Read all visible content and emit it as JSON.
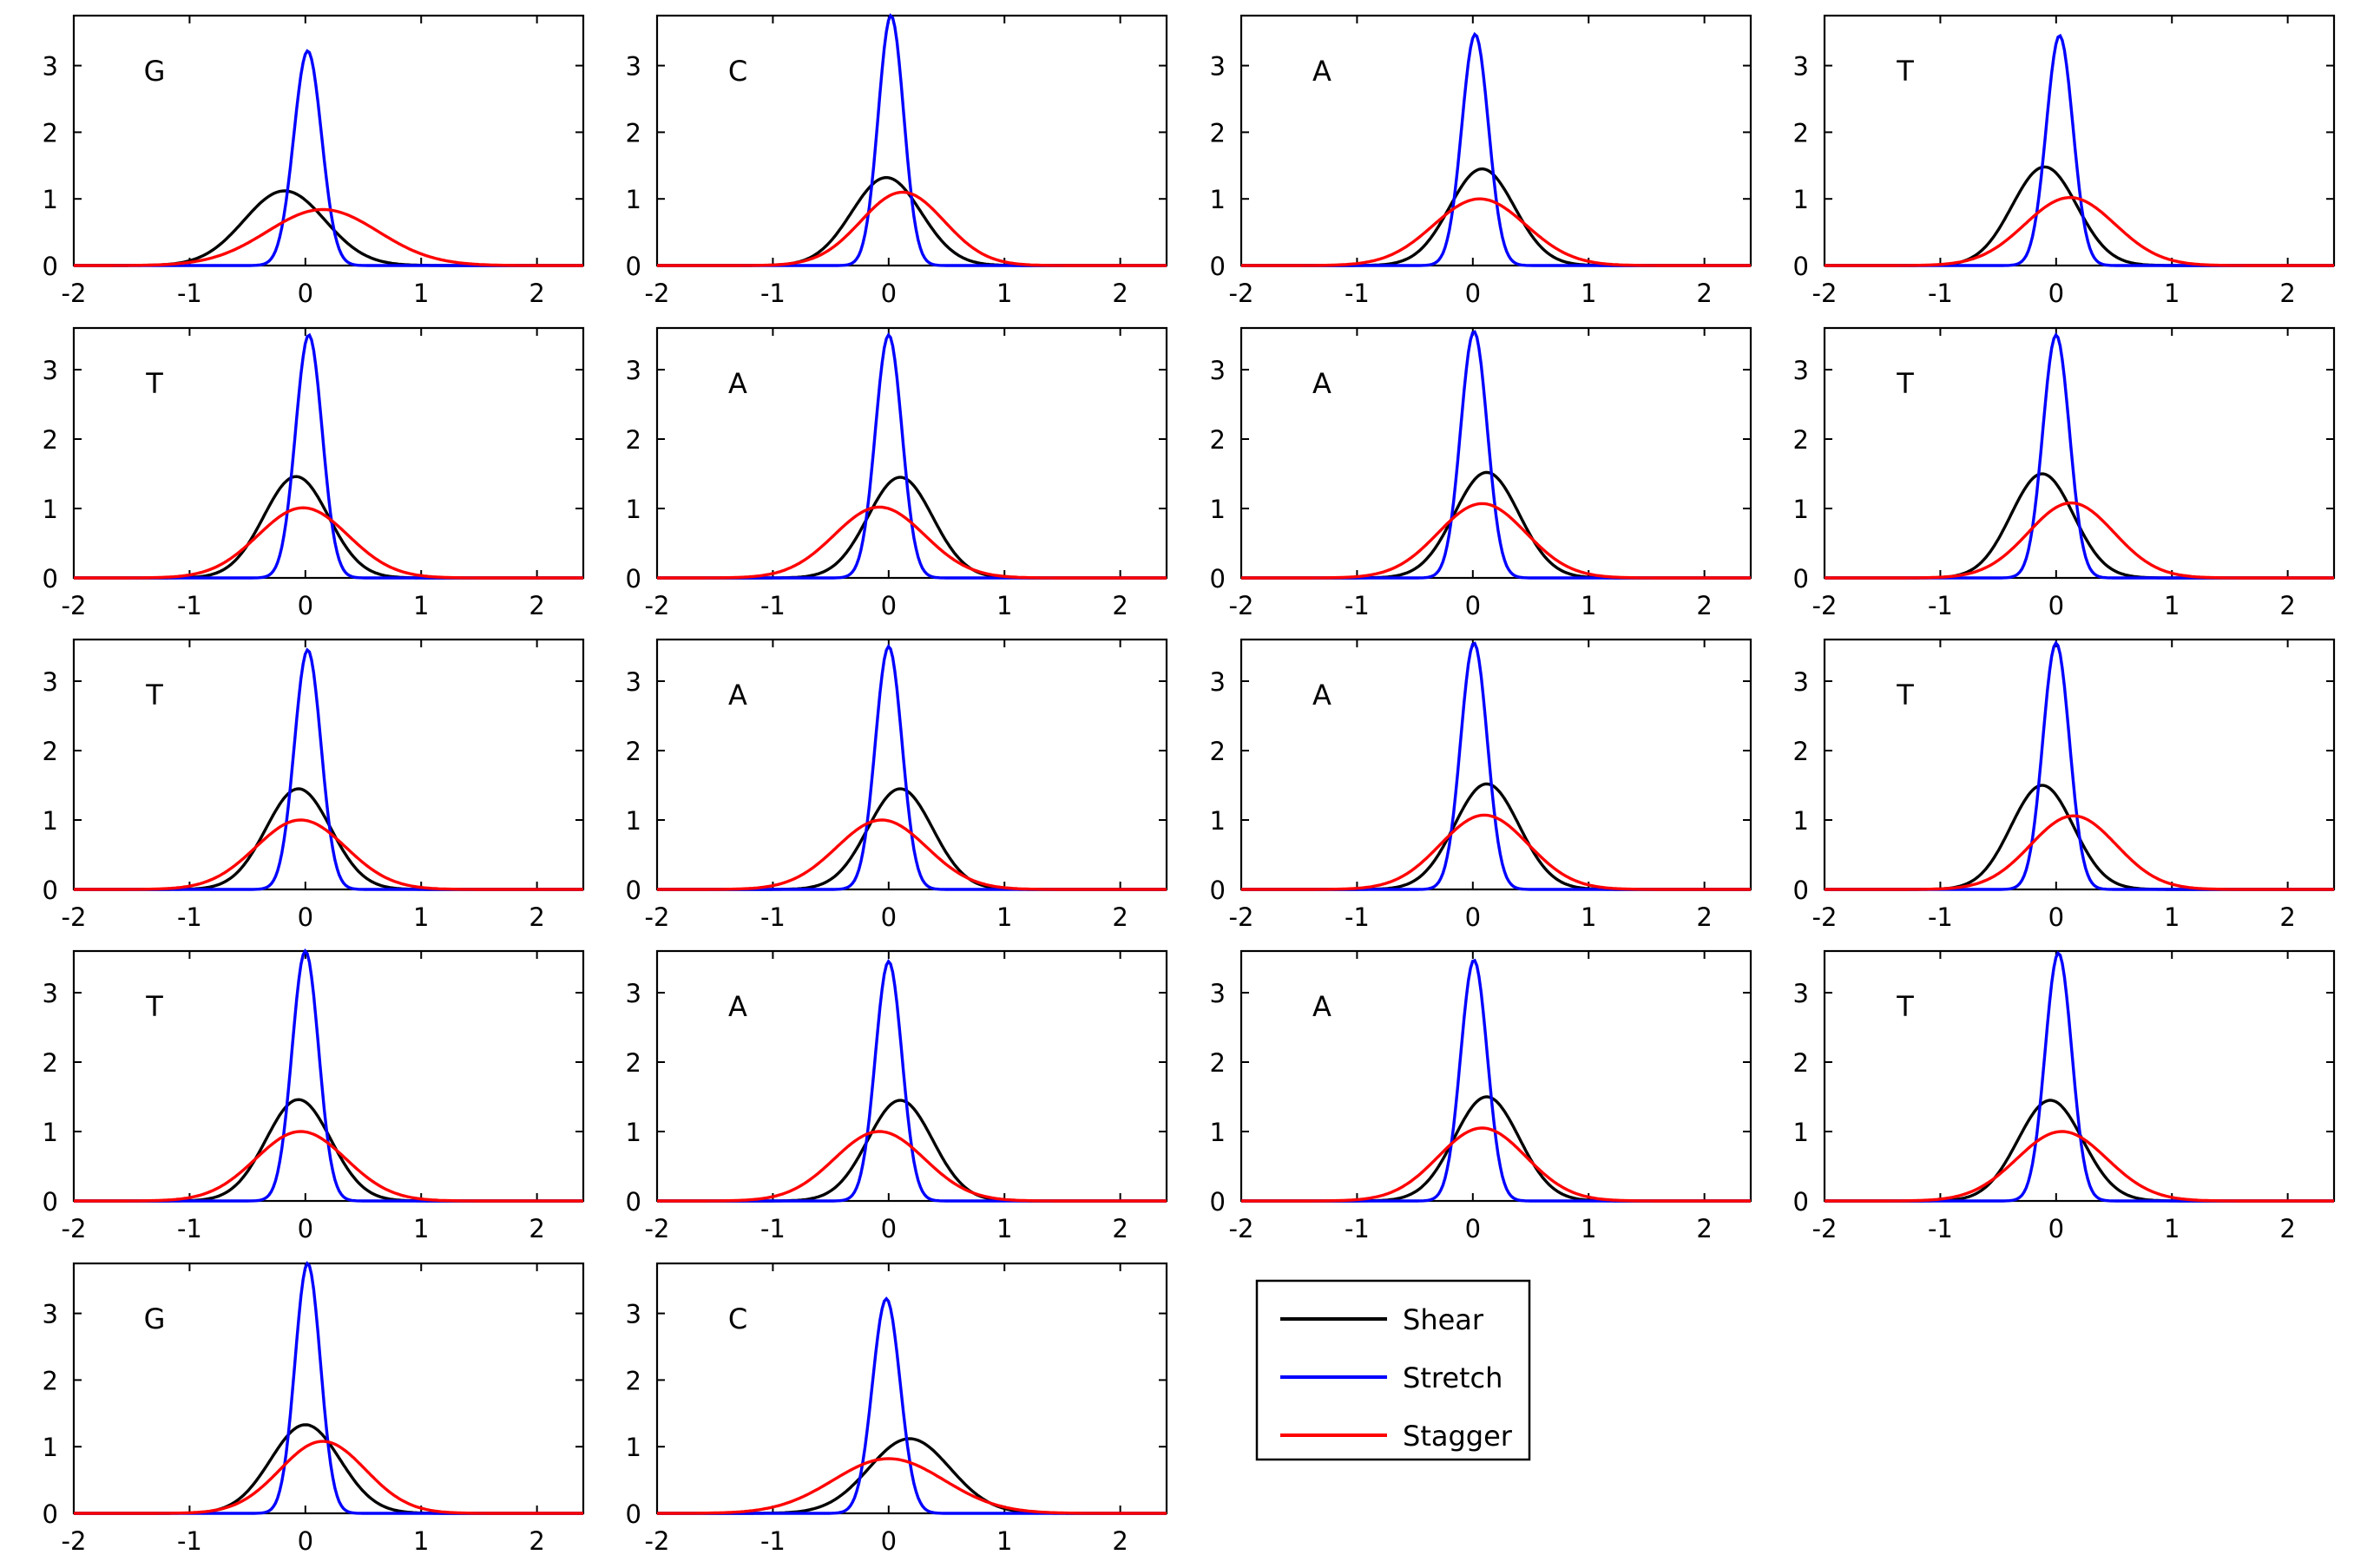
{
  "figure": {
    "layout": {
      "rows": 5,
      "cols": 4
    },
    "legend": {
      "placement": "row-5-col-3",
      "entries": [
        {
          "name": "Shear",
          "color": "#000000"
        },
        {
          "name": "Stretch",
          "color": "#0000ff"
        },
        {
          "name": "Stagger",
          "color": "#ff0000"
        }
      ]
    }
  },
  "chart_data": [
    {
      "type": "line",
      "label": "G",
      "xlim": [
        -2,
        2.4
      ],
      "ylim": [
        0,
        3.75
      ],
      "xticks": [
        -2,
        -1,
        0,
        1,
        2
      ],
      "yticks": [
        0,
        1,
        2,
        3
      ],
      "grid": false,
      "series": [
        {
          "name": "Shear",
          "color": "#000000",
          "mu": -0.18,
          "sigma": 0.35,
          "peak": 1.12
        },
        {
          "name": "Stretch",
          "color": "#0000ff",
          "mu": 0.02,
          "sigma": 0.12,
          "peak": 3.22
        },
        {
          "name": "Stagger",
          "color": "#ff0000",
          "mu": 0.15,
          "sigma": 0.48,
          "peak": 0.84
        }
      ]
    },
    {
      "type": "line",
      "label": "C",
      "xlim": [
        -2,
        2.4
      ],
      "ylim": [
        0,
        3.75
      ],
      "xticks": [
        -2,
        -1,
        0,
        1,
        2
      ],
      "yticks": [
        0,
        1,
        2,
        3
      ],
      "grid": false,
      "series": [
        {
          "name": "Shear",
          "color": "#000000",
          "mu": -0.02,
          "sigma": 0.3,
          "peak": 1.32
        },
        {
          "name": "Stretch",
          "color": "#0000ff",
          "mu": 0.02,
          "sigma": 0.11,
          "peak": 3.75
        },
        {
          "name": "Stagger",
          "color": "#ff0000",
          "mu": 0.12,
          "sigma": 0.36,
          "peak": 1.1
        }
      ]
    },
    {
      "type": "line",
      "label": "A",
      "xlim": [
        -2,
        2.4
      ],
      "ylim": [
        0,
        3.75
      ],
      "xticks": [
        -2,
        -1,
        0,
        1,
        2
      ],
      "yticks": [
        0,
        1,
        2,
        3
      ],
      "grid": false,
      "series": [
        {
          "name": "Shear",
          "color": "#000000",
          "mu": 0.08,
          "sigma": 0.28,
          "peak": 1.45
        },
        {
          "name": "Stretch",
          "color": "#0000ff",
          "mu": 0.02,
          "sigma": 0.115,
          "peak": 3.47
        },
        {
          "name": "Stagger",
          "color": "#ff0000",
          "mu": 0.06,
          "sigma": 0.4,
          "peak": 1.0
        }
      ]
    },
    {
      "type": "line",
      "label": "T",
      "xlim": [
        -2,
        2.4
      ],
      "ylim": [
        0,
        3.75
      ],
      "xticks": [
        -2,
        -1,
        0,
        1,
        2
      ],
      "yticks": [
        0,
        1,
        2,
        3
      ],
      "grid": false,
      "series": [
        {
          "name": "Shear",
          "color": "#000000",
          "mu": -0.1,
          "sigma": 0.28,
          "peak": 1.48
        },
        {
          "name": "Stretch",
          "color": "#0000ff",
          "mu": 0.03,
          "sigma": 0.115,
          "peak": 3.45
        },
        {
          "name": "Stagger",
          "color": "#ff0000",
          "mu": 0.12,
          "sigma": 0.39,
          "peak": 1.02
        }
      ]
    },
    {
      "type": "line",
      "label": "T",
      "xlim": [
        -2,
        2.4
      ],
      "ylim": [
        0,
        3.6
      ],
      "xticks": [
        -2,
        -1,
        0,
        1,
        2
      ],
      "yticks": [
        0,
        1,
        2,
        3
      ],
      "grid": false,
      "series": [
        {
          "name": "Shear",
          "color": "#000000",
          "mu": -0.08,
          "sigma": 0.28,
          "peak": 1.46
        },
        {
          "name": "Stretch",
          "color": "#0000ff",
          "mu": 0.03,
          "sigma": 0.115,
          "peak": 3.5
        },
        {
          "name": "Stagger",
          "color": "#ff0000",
          "mu": -0.02,
          "sigma": 0.39,
          "peak": 1.01
        }
      ]
    },
    {
      "type": "line",
      "label": "A",
      "xlim": [
        -2,
        2.4
      ],
      "ylim": [
        0,
        3.6
      ],
      "xticks": [
        -2,
        -1,
        0,
        1,
        2
      ],
      "yticks": [
        0,
        1,
        2,
        3
      ],
      "grid": false,
      "series": [
        {
          "name": "Shear",
          "color": "#000000",
          "mu": 0.1,
          "sigma": 0.28,
          "peak": 1.45
        },
        {
          "name": "Stretch",
          "color": "#0000ff",
          "mu": 0.0,
          "sigma": 0.115,
          "peak": 3.5
        },
        {
          "name": "Stagger",
          "color": "#ff0000",
          "mu": -0.08,
          "sigma": 0.39,
          "peak": 1.02
        }
      ]
    },
    {
      "type": "line",
      "label": "A",
      "xlim": [
        -2,
        2.4
      ],
      "ylim": [
        0,
        3.6
      ],
      "xticks": [
        -2,
        -1,
        0,
        1,
        2
      ],
      "yticks": [
        0,
        1,
        2,
        3
      ],
      "grid": false,
      "series": [
        {
          "name": "Shear",
          "color": "#000000",
          "mu": 0.12,
          "sigma": 0.28,
          "peak": 1.52
        },
        {
          "name": "Stretch",
          "color": "#0000ff",
          "mu": 0.01,
          "sigma": 0.115,
          "peak": 3.55
        },
        {
          "name": "Stagger",
          "color": "#ff0000",
          "mu": 0.08,
          "sigma": 0.38,
          "peak": 1.07
        }
      ]
    },
    {
      "type": "line",
      "label": "T",
      "xlim": [
        -2,
        2.4
      ],
      "ylim": [
        0,
        3.6
      ],
      "xticks": [
        -2,
        -1,
        0,
        1,
        2
      ],
      "yticks": [
        0,
        1,
        2,
        3
      ],
      "grid": false,
      "series": [
        {
          "name": "Shear",
          "color": "#000000",
          "mu": -0.12,
          "sigma": 0.27,
          "peak": 1.5
        },
        {
          "name": "Stretch",
          "color": "#0000ff",
          "mu": 0.0,
          "sigma": 0.115,
          "peak": 3.5
        },
        {
          "name": "Stagger",
          "color": "#ff0000",
          "mu": 0.13,
          "sigma": 0.37,
          "peak": 1.08
        }
      ]
    },
    {
      "type": "line",
      "label": "T",
      "xlim": [
        -2,
        2.4
      ],
      "ylim": [
        0,
        3.6
      ],
      "xticks": [
        -2,
        -1,
        0,
        1,
        2
      ],
      "yticks": [
        0,
        1,
        2,
        3
      ],
      "grid": false,
      "series": [
        {
          "name": "Shear",
          "color": "#000000",
          "mu": -0.06,
          "sigma": 0.28,
          "peak": 1.45
        },
        {
          "name": "Stretch",
          "color": "#0000ff",
          "mu": 0.02,
          "sigma": 0.115,
          "peak": 3.45
        },
        {
          "name": "Stagger",
          "color": "#ff0000",
          "mu": -0.04,
          "sigma": 0.39,
          "peak": 1.0
        }
      ]
    },
    {
      "type": "line",
      "label": "A",
      "xlim": [
        -2,
        2.4
      ],
      "ylim": [
        0,
        3.6
      ],
      "xticks": [
        -2,
        -1,
        0,
        1,
        2
      ],
      "yticks": [
        0,
        1,
        2,
        3
      ],
      "grid": false,
      "series": [
        {
          "name": "Shear",
          "color": "#000000",
          "mu": 0.1,
          "sigma": 0.28,
          "peak": 1.45
        },
        {
          "name": "Stretch",
          "color": "#0000ff",
          "mu": 0.0,
          "sigma": 0.115,
          "peak": 3.5
        },
        {
          "name": "Stagger",
          "color": "#ff0000",
          "mu": -0.06,
          "sigma": 0.39,
          "peak": 1.0
        }
      ]
    },
    {
      "type": "line",
      "label": "A",
      "xlim": [
        -2,
        2.4
      ],
      "ylim": [
        0,
        3.6
      ],
      "xticks": [
        -2,
        -1,
        0,
        1,
        2
      ],
      "yticks": [
        0,
        1,
        2,
        3
      ],
      "grid": false,
      "series": [
        {
          "name": "Shear",
          "color": "#000000",
          "mu": 0.12,
          "sigma": 0.28,
          "peak": 1.52
        },
        {
          "name": "Stretch",
          "color": "#0000ff",
          "mu": 0.01,
          "sigma": 0.115,
          "peak": 3.55
        },
        {
          "name": "Stagger",
          "color": "#ff0000",
          "mu": 0.1,
          "sigma": 0.38,
          "peak": 1.07
        }
      ]
    },
    {
      "type": "line",
      "label": "T",
      "xlim": [
        -2,
        2.4
      ],
      "ylim": [
        0,
        3.6
      ],
      "xticks": [
        -2,
        -1,
        0,
        1,
        2
      ],
      "yticks": [
        0,
        1,
        2,
        3
      ],
      "grid": false,
      "series": [
        {
          "name": "Shear",
          "color": "#000000",
          "mu": -0.12,
          "sigma": 0.27,
          "peak": 1.5
        },
        {
          "name": "Stretch",
          "color": "#0000ff",
          "mu": 0.0,
          "sigma": 0.115,
          "peak": 3.55
        },
        {
          "name": "Stagger",
          "color": "#ff0000",
          "mu": 0.15,
          "sigma": 0.37,
          "peak": 1.06
        }
      ]
    },
    {
      "type": "line",
      "label": "T",
      "xlim": [
        -2,
        2.4
      ],
      "ylim": [
        0,
        3.6
      ],
      "xticks": [
        -2,
        -1,
        0,
        1,
        2
      ],
      "yticks": [
        0,
        1,
        2,
        3
      ],
      "grid": false,
      "series": [
        {
          "name": "Shear",
          "color": "#000000",
          "mu": -0.06,
          "sigma": 0.28,
          "peak": 1.46
        },
        {
          "name": "Stretch",
          "color": "#0000ff",
          "mu": 0.0,
          "sigma": 0.115,
          "peak": 3.6
        },
        {
          "name": "Stagger",
          "color": "#ff0000",
          "mu": -0.04,
          "sigma": 0.39,
          "peak": 1.0
        }
      ]
    },
    {
      "type": "line",
      "label": "A",
      "xlim": [
        -2,
        2.4
      ],
      "ylim": [
        0,
        3.6
      ],
      "xticks": [
        -2,
        -1,
        0,
        1,
        2
      ],
      "yticks": [
        0,
        1,
        2,
        3
      ],
      "grid": false,
      "series": [
        {
          "name": "Shear",
          "color": "#000000",
          "mu": 0.1,
          "sigma": 0.28,
          "peak": 1.45
        },
        {
          "name": "Stretch",
          "color": "#0000ff",
          "mu": 0.0,
          "sigma": 0.115,
          "peak": 3.45
        },
        {
          "name": "Stagger",
          "color": "#ff0000",
          "mu": -0.08,
          "sigma": 0.39,
          "peak": 1.0
        }
      ]
    },
    {
      "type": "line",
      "label": "A",
      "xlim": [
        -2,
        2.4
      ],
      "ylim": [
        0,
        3.6
      ],
      "xticks": [
        -2,
        -1,
        0,
        1,
        2
      ],
      "yticks": [
        0,
        1,
        2,
        3
      ],
      "grid": false,
      "series": [
        {
          "name": "Shear",
          "color": "#000000",
          "mu": 0.12,
          "sigma": 0.28,
          "peak": 1.5
        },
        {
          "name": "Stretch",
          "color": "#0000ff",
          "mu": 0.01,
          "sigma": 0.115,
          "peak": 3.47
        },
        {
          "name": "Stagger",
          "color": "#ff0000",
          "mu": 0.08,
          "sigma": 0.38,
          "peak": 1.05
        }
      ]
    },
    {
      "type": "line",
      "label": "T",
      "xlim": [
        -2,
        2.4
      ],
      "ylim": [
        0,
        3.6
      ],
      "xticks": [
        -2,
        -1,
        0,
        1,
        2
      ],
      "yticks": [
        0,
        1,
        2,
        3
      ],
      "grid": false,
      "series": [
        {
          "name": "Shear",
          "color": "#000000",
          "mu": -0.05,
          "sigma": 0.28,
          "peak": 1.45
        },
        {
          "name": "Stretch",
          "color": "#0000ff",
          "mu": 0.02,
          "sigma": 0.115,
          "peak": 3.57
        },
        {
          "name": "Stagger",
          "color": "#ff0000",
          "mu": 0.05,
          "sigma": 0.39,
          "peak": 1.0
        }
      ]
    },
    {
      "type": "line",
      "label": "G",
      "xlim": [
        -2,
        2.4
      ],
      "ylim": [
        0,
        3.75
      ],
      "xticks": [
        -2,
        -1,
        0,
        1,
        2
      ],
      "yticks": [
        0,
        1,
        2,
        3
      ],
      "grid": false,
      "series": [
        {
          "name": "Shear",
          "color": "#000000",
          "mu": 0.0,
          "sigma": 0.3,
          "peak": 1.33
        },
        {
          "name": "Stretch",
          "color": "#0000ff",
          "mu": 0.02,
          "sigma": 0.11,
          "peak": 3.75
        },
        {
          "name": "Stagger",
          "color": "#ff0000",
          "mu": 0.15,
          "sigma": 0.37,
          "peak": 1.08
        }
      ]
    },
    {
      "type": "line",
      "label": "C",
      "xlim": [
        -2,
        2.4
      ],
      "ylim": [
        0,
        3.75
      ],
      "xticks": [
        -2,
        -1,
        0,
        1,
        2
      ],
      "yticks": [
        0,
        1,
        2,
        3
      ],
      "grid": false,
      "series": [
        {
          "name": "Shear",
          "color": "#000000",
          "mu": 0.18,
          "sigma": 0.35,
          "peak": 1.12
        },
        {
          "name": "Stretch",
          "color": "#0000ff",
          "mu": -0.02,
          "sigma": 0.12,
          "peak": 3.22
        },
        {
          "name": "Stagger",
          "color": "#ff0000",
          "mu": 0.0,
          "sigma": 0.48,
          "peak": 0.82
        }
      ]
    }
  ]
}
